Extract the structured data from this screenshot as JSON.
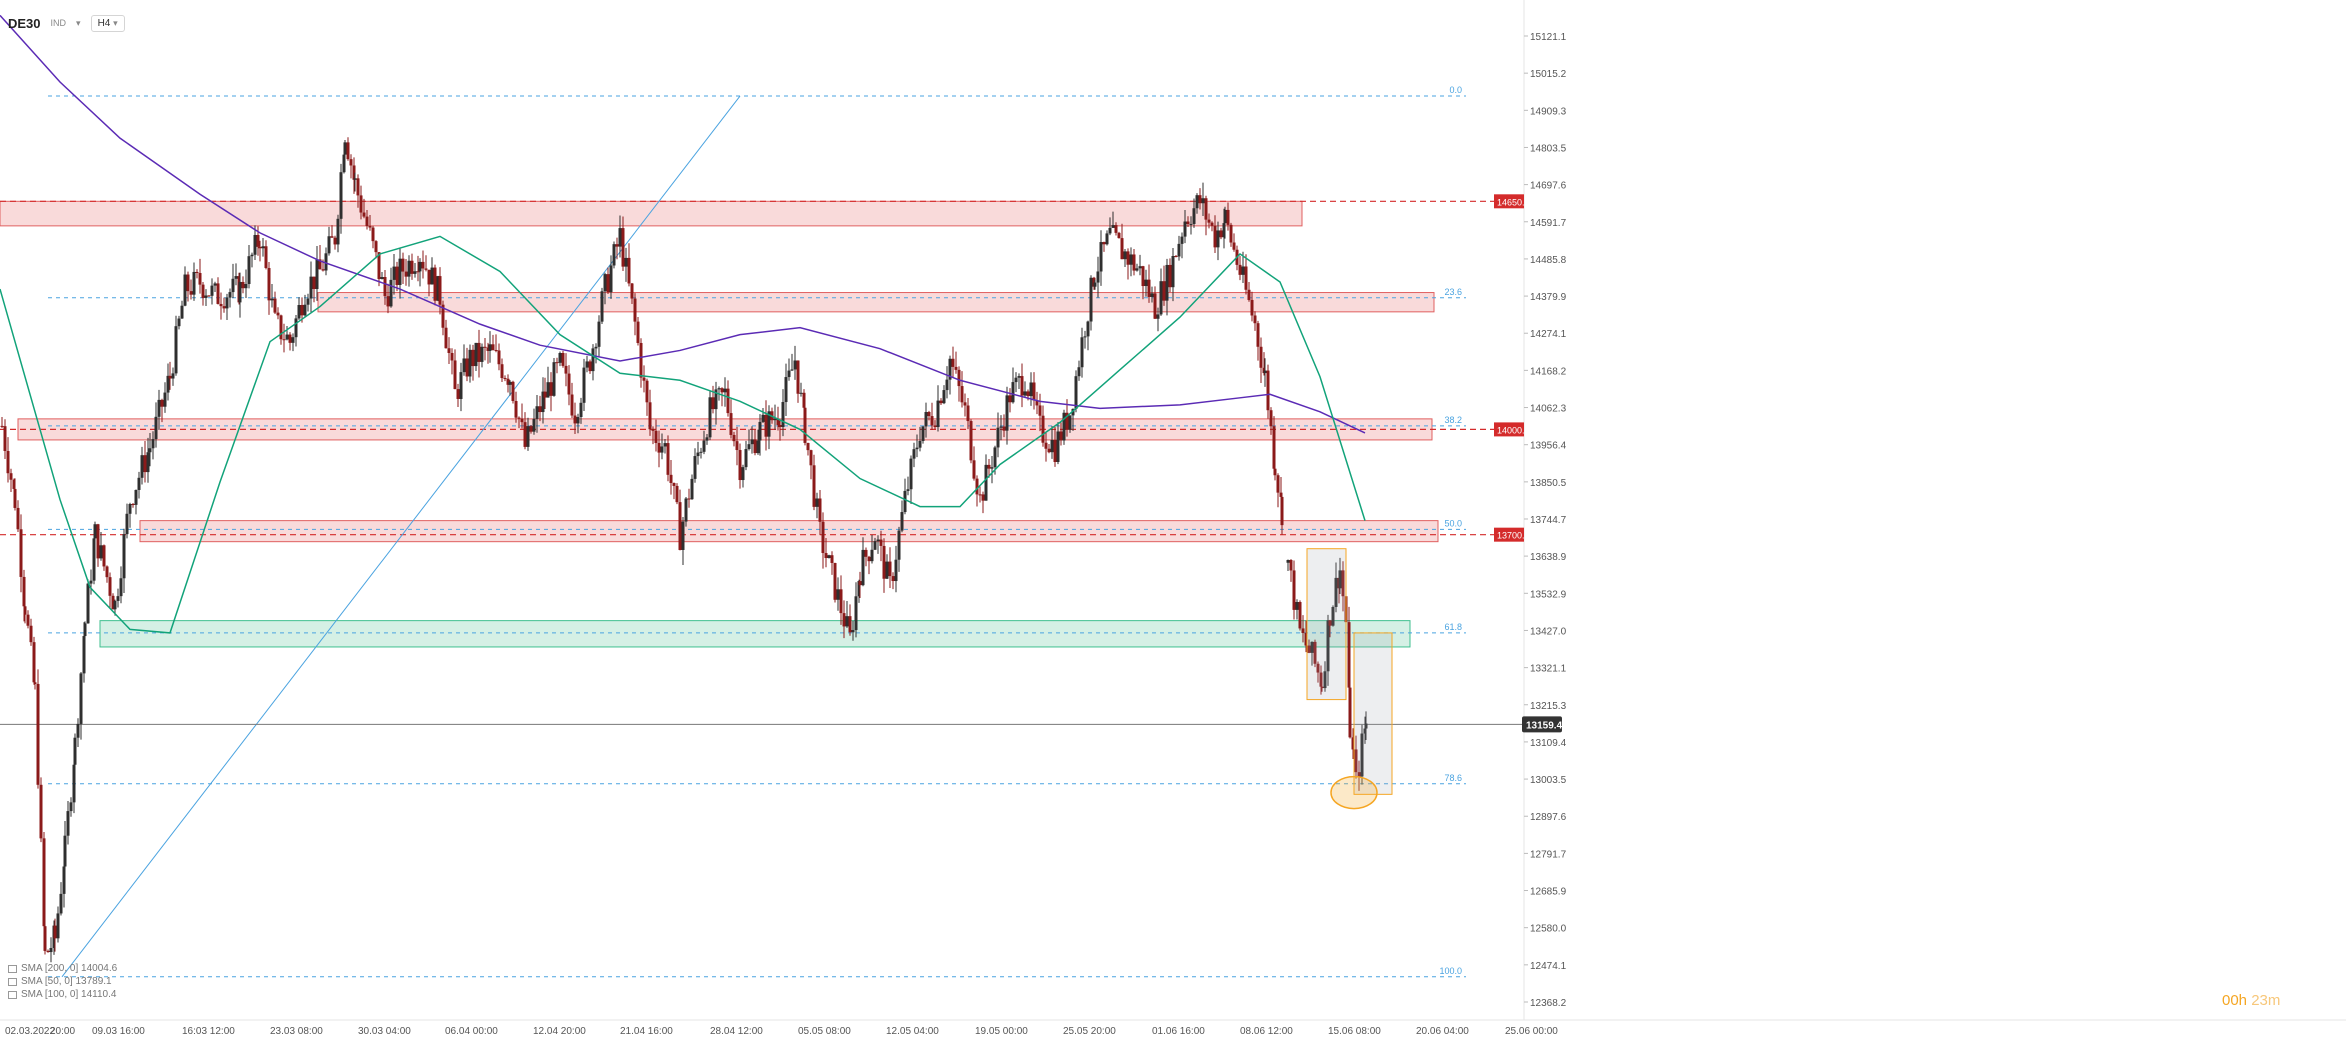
{
  "toolbar": {
    "symbol": "DE30",
    "subtitle": "IND",
    "timeframe": "H4"
  },
  "timer": {
    "h": "00h",
    "m": "23m"
  },
  "legend": [
    {
      "label": "SMA [200, 0] 14004.6"
    },
    {
      "label": "SMA [50, 0] 13789.1"
    },
    {
      "label": "SMA [100, 0] 14110.4"
    }
  ],
  "colors": {
    "up": "#2f2f2f",
    "down": "#8b1a1a",
    "sma200": "#5b2bb5",
    "sma50": "#12a37a",
    "fib": "#4aa3e0",
    "zoneRed": "#f5c2c2",
    "zoneRedEdge": "#e06060",
    "zoneGreen": "#b9e6d4",
    "zoneGreenEdge": "#3fbf8f",
    "orange": "#f5a623"
  },
  "chart_data": {
    "type": "candlestick",
    "title": "DE30",
    "ylim": [
      12368.2,
      15180
    ],
    "y_ticks": [
      "15121.1",
      "15015.2",
      "14909.3",
      "14803.5",
      "14697.6",
      "14591.7",
      "14485.8",
      "14379.9",
      "14274.1",
      "14168.2",
      "14062.3",
      "13956.4",
      "13850.5",
      "13744.7",
      "13638.9",
      "13532.9",
      "13427.0",
      "13321.1",
      "13215.3",
      "13109.4",
      "13003.5",
      "12897.6",
      "12791.7",
      "12685.9",
      "12580.0",
      "12474.1",
      "12368.2"
    ],
    "x_ticks": [
      "02.03.2022",
      "20:00",
      "09.03 16:00",
      "16:03 12:00",
      "23.03 08:00",
      "30.03 04:00",
      "06.04 00:00",
      "12.04 20:00",
      "21.04 16:00",
      "28.04 12:00",
      "05.05 08:00",
      "12.05 04:00",
      "19.05 00:00",
      "25.05 20:00",
      "01.06 16:00",
      "08.06 12:00",
      "15.06 08:00",
      "20.06 04:00",
      "25.06 00:00"
    ],
    "current_price": 13159.4,
    "fib_levels": [
      {
        "label": "0.0",
        "value": 14950
      },
      {
        "label": "23.6",
        "value": 14375
      },
      {
        "label": "38.2",
        "value": 14010
      },
      {
        "label": "50.0",
        "value": 13715
      },
      {
        "label": "61.8",
        "value": 13420
      },
      {
        "label": "78.6",
        "value": 12990
      },
      {
        "label": "100.0",
        "value": 12440
      }
    ],
    "levels": [
      {
        "label": "14650.",
        "value": 14650
      },
      {
        "label": "14000.",
        "value": 14000
      },
      {
        "label": "13700.",
        "value": 13700
      }
    ],
    "zones": [
      {
        "kind": "red",
        "x0": 0,
        "x1": 1302,
        "top": 14650,
        "bottom": 14580
      },
      {
        "kind": "red",
        "x0": 318,
        "x1": 1434,
        "top": 14390,
        "bottom": 14335
      },
      {
        "kind": "red",
        "x0": 18,
        "x1": 1432,
        "top": 14030,
        "bottom": 13970
      },
      {
        "kind": "red",
        "x0": 140,
        "x1": 1438,
        "top": 13740,
        "bottom": 13680
      },
      {
        "kind": "green",
        "x0": 100,
        "x1": 1410,
        "top": 13455,
        "bottom": 13380
      }
    ],
    "sma200": [
      [
        0,
        15180
      ],
      [
        60,
        14990
      ],
      [
        120,
        14830
      ],
      [
        200,
        14670
      ],
      [
        260,
        14560
      ],
      [
        320,
        14480
      ],
      [
        400,
        14400
      ],
      [
        480,
        14300
      ],
      [
        540,
        14240
      ],
      [
        620,
        14195
      ],
      [
        680,
        14225
      ],
      [
        740,
        14270
      ],
      [
        800,
        14290
      ],
      [
        880,
        14230
      ],
      [
        960,
        14140
      ],
      [
        1040,
        14080
      ],
      [
        1100,
        14060
      ],
      [
        1180,
        14070
      ],
      [
        1240,
        14090
      ],
      [
        1270,
        14100
      ],
      [
        1320,
        14050
      ],
      [
        1365,
        13990
      ]
    ],
    "sma50": [
      [
        0,
        14400
      ],
      [
        30,
        14100
      ],
      [
        60,
        13800
      ],
      [
        90,
        13550
      ],
      [
        130,
        13430
      ],
      [
        170,
        13420
      ],
      [
        220,
        13850
      ],
      [
        270,
        14250
      ],
      [
        320,
        14350
      ],
      [
        380,
        14500
      ],
      [
        440,
        14550
      ],
      [
        500,
        14450
      ],
      [
        560,
        14270
      ],
      [
        620,
        14160
      ],
      [
        680,
        14140
      ],
      [
        740,
        14080
      ],
      [
        800,
        14000
      ],
      [
        860,
        13860
      ],
      [
        920,
        13780
      ],
      [
        960,
        13780
      ],
      [
        1000,
        13900
      ],
      [
        1060,
        14020
      ],
      [
        1120,
        14170
      ],
      [
        1180,
        14320
      ],
      [
        1240,
        14500
      ],
      [
        1280,
        14420
      ],
      [
        1320,
        14150
      ],
      [
        1365,
        13740
      ]
    ],
    "measure_boxes": [
      {
        "x0": 1307,
        "x1": 1346,
        "top": 13660,
        "bottom": 13230
      },
      {
        "x0": 1354,
        "x1": 1392,
        "top": 13420,
        "bottom": 12960
      }
    ],
    "highlight_circle": {
      "x": 1354,
      "value": 12965
    },
    "trendline": [
      [
        62,
        12440
      ],
      [
        740,
        14950
      ]
    ],
    "candle_anchors": [
      [
        2,
        14010
      ],
      [
        15,
        13800
      ],
      [
        25,
        13500
      ],
      [
        35,
        13250
      ],
      [
        45,
        12500
      ],
      [
        55,
        12550
      ],
      [
        65,
        12800
      ],
      [
        75,
        13100
      ],
      [
        85,
        13450
      ],
      [
        95,
        13700
      ],
      [
        115,
        13500
      ],
      [
        130,
        13800
      ],
      [
        150,
        13950
      ],
      [
        170,
        14150
      ],
      [
        185,
        14400
      ],
      [
        200,
        14420
      ],
      [
        215,
        14380
      ],
      [
        240,
        14400
      ],
      [
        260,
        14550
      ],
      [
        275,
        14300
      ],
      [
        290,
        14250
      ],
      [
        305,
        14400
      ],
      [
        320,
        14450
      ],
      [
        335,
        14550
      ],
      [
        345,
        14850
      ],
      [
        355,
        14700
      ],
      [
        370,
        14550
      ],
      [
        385,
        14380
      ],
      [
        400,
        14450
      ],
      [
        420,
        14500
      ],
      [
        440,
        14380
      ],
      [
        455,
        14100
      ],
      [
        470,
        14200
      ],
      [
        490,
        14220
      ],
      [
        510,
        14150
      ],
      [
        525,
        13950
      ],
      [
        545,
        14100
      ],
      [
        560,
        14180
      ],
      [
        575,
        14050
      ],
      [
        590,
        14200
      ],
      [
        605,
        14400
      ],
      [
        620,
        14550
      ],
      [
        635,
        14300
      ],
      [
        650,
        14000
      ],
      [
        665,
        13950
      ],
      [
        680,
        13700
      ],
      [
        695,
        13900
      ],
      [
        710,
        14050
      ],
      [
        725,
        14100
      ],
      [
        740,
        13900
      ],
      [
        760,
        14000
      ],
      [
        780,
        14050
      ],
      [
        795,
        14200
      ],
      [
        805,
        14000
      ],
      [
        820,
        13700
      ],
      [
        835,
        13550
      ],
      [
        850,
        13400
      ],
      [
        860,
        13600
      ],
      [
        875,
        13700
      ],
      [
        890,
        13550
      ],
      [
        905,
        13800
      ],
      [
        920,
        14000
      ],
      [
        935,
        14050
      ],
      [
        950,
        14200
      ],
      [
        965,
        14050
      ],
      [
        980,
        13800
      ],
      [
        995,
        13950
      ],
      [
        1010,
        14100
      ],
      [
        1025,
        14150
      ],
      [
        1040,
        14000
      ],
      [
        1055,
        13950
      ],
      [
        1070,
        14050
      ],
      [
        1085,
        14300
      ],
      [
        1095,
        14450
      ],
      [
        1110,
        14550
      ],
      [
        1125,
        14500
      ],
      [
        1140,
        14450
      ],
      [
        1155,
        14350
      ],
      [
        1170,
        14450
      ],
      [
        1185,
        14600
      ],
      [
        1200,
        14650
      ],
      [
        1215,
        14550
      ],
      [
        1225,
        14600
      ],
      [
        1240,
        14450
      ],
      [
        1255,
        14300
      ],
      [
        1265,
        14150
      ],
      [
        1275,
        13900
      ],
      [
        1282,
        13770
      ]
    ],
    "candle_anchors_2": [
      [
        1288,
        13620
      ],
      [
        1300,
        13420
      ],
      [
        1312,
        13350
      ],
      [
        1322,
        13280
      ],
      [
        1330,
        13480
      ],
      [
        1340,
        13600
      ],
      [
        1346,
        13450
      ],
      [
        1350,
        13150
      ],
      [
        1356,
        12990
      ],
      [
        1362,
        13100
      ],
      [
        1366,
        13159.4
      ]
    ]
  }
}
